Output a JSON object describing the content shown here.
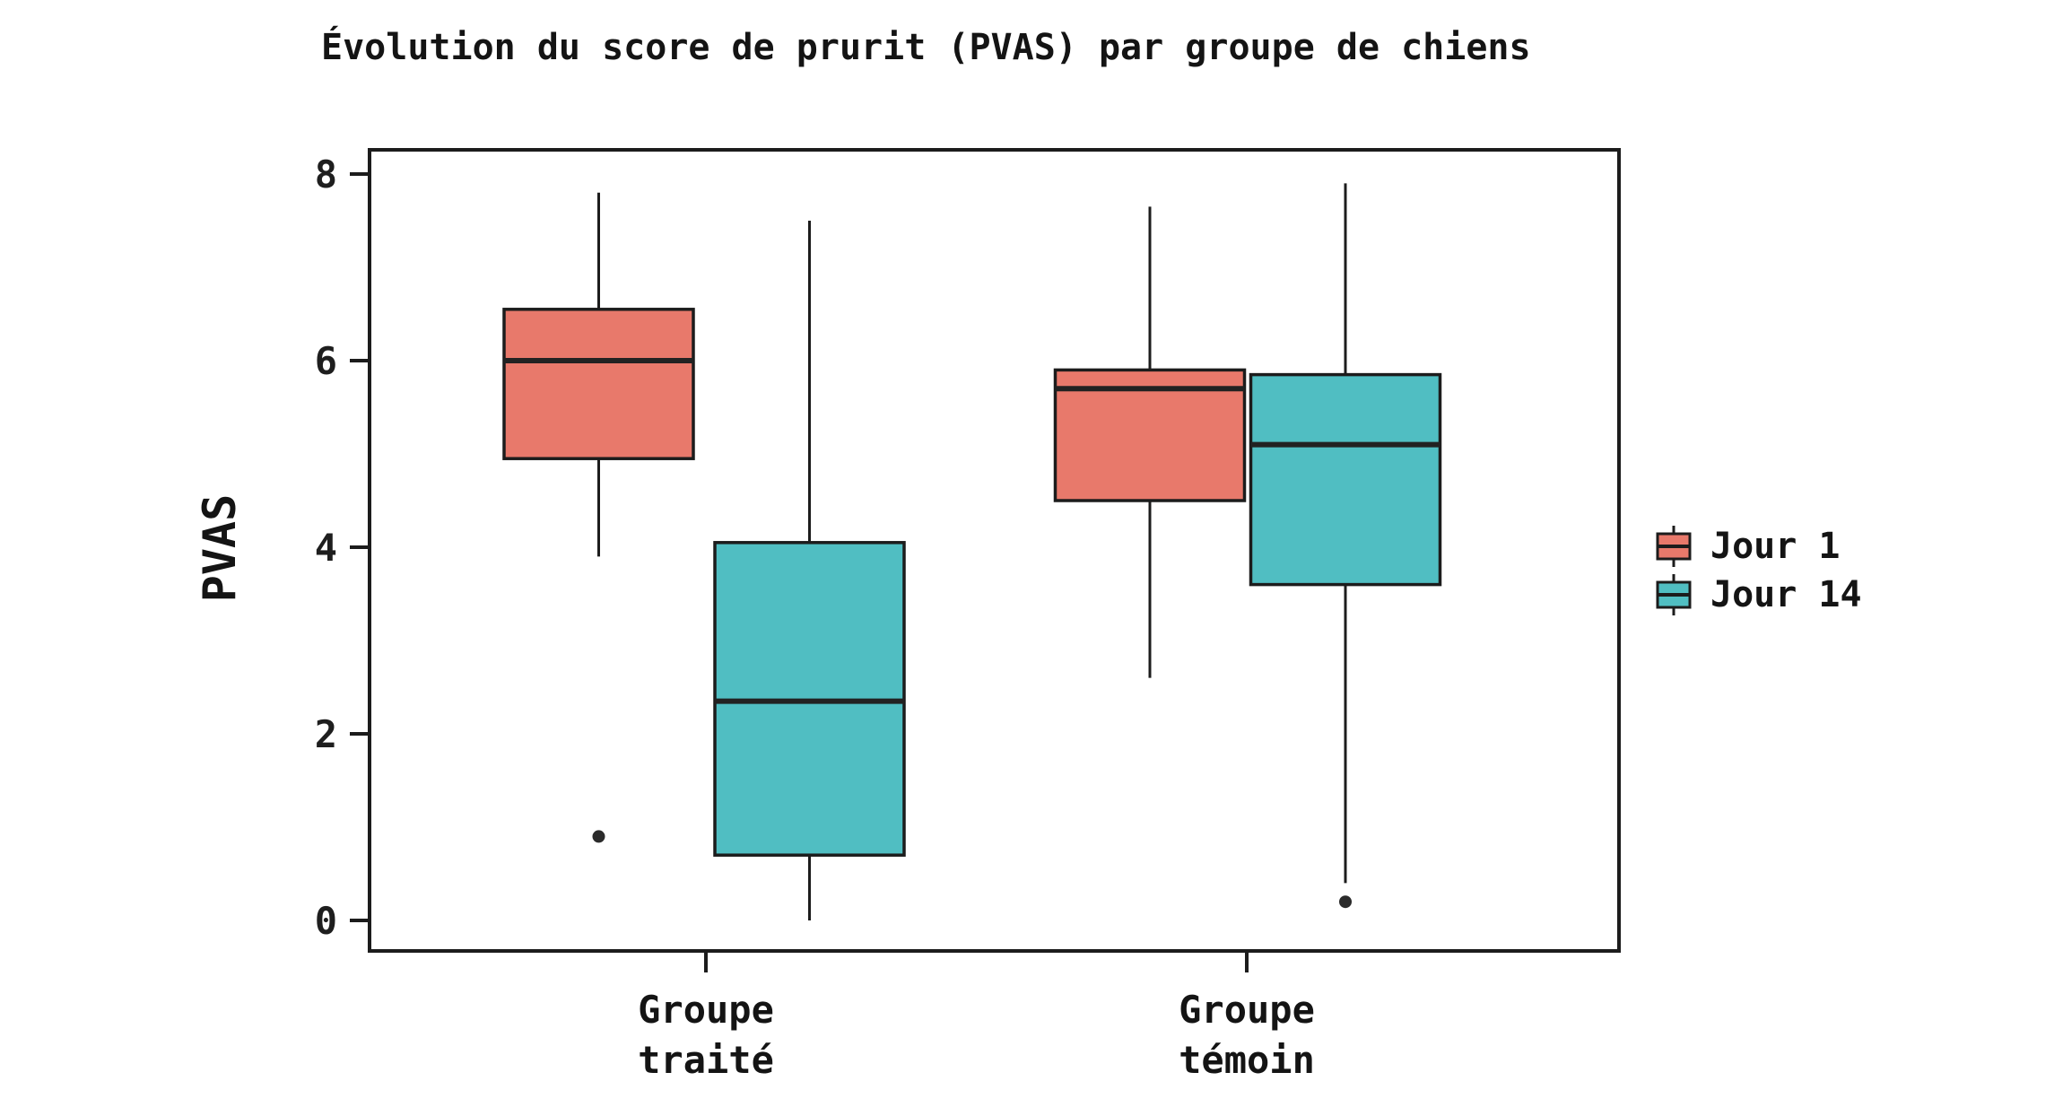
{
  "title": "Évolution du score de prurit (PVAS) par groupe de chiens",
  "y_axis": {
    "label": "PVAS",
    "ticks": [
      0,
      2,
      4,
      6,
      8
    ]
  },
  "x_axis": {
    "groups": [
      {
        "line1": "Groupe",
        "line2": "traité"
      },
      {
        "line1": "Groupe",
        "line2": "témoin"
      }
    ]
  },
  "legend": {
    "position": "right",
    "entries": [
      {
        "label": "Jour 1",
        "color": "#E8796B"
      },
      {
        "label": "Jour 14",
        "color": "#50BEC2"
      }
    ]
  },
  "colors": {
    "stroke": "#1C1C1C",
    "outlier": "#2B2B2B",
    "background": "#FFFFFF"
  },
  "chart_data": {
    "type": "boxplot",
    "title": "Évolution du score de prurit (PVAS) par groupe de chiens",
    "xlabel": "",
    "ylabel": "PVAS",
    "ylim": [
      -0.33,
      8.26
    ],
    "yticks": [
      0,
      2,
      4,
      6,
      8
    ],
    "grid": false,
    "legend_position": "right",
    "categories": [
      "Groupe traité",
      "Groupe témoin"
    ],
    "series": [
      {
        "name": "Jour 1",
        "color": "#E8796B",
        "boxes": [
          {
            "category": "Groupe traité",
            "whisker_low": 3.9,
            "q1": 4.95,
            "median": 6.0,
            "q3": 6.55,
            "whisker_high": 7.8,
            "outliers": [
              0.9
            ]
          },
          {
            "category": "Groupe témoin",
            "whisker_low": 2.6,
            "q1": 4.5,
            "median": 5.7,
            "q3": 5.9,
            "whisker_high": 7.65,
            "outliers": []
          }
        ]
      },
      {
        "name": "Jour 14",
        "color": "#50BEC2",
        "boxes": [
          {
            "category": "Groupe traité",
            "whisker_low": 0.0,
            "q1": 0.7,
            "median": 2.35,
            "q3": 4.05,
            "whisker_high": 7.5,
            "outliers": []
          },
          {
            "category": "Groupe témoin",
            "whisker_low": 0.4,
            "q1": 3.6,
            "median": 5.1,
            "q3": 5.85,
            "whisker_high": 7.9,
            "outliers": [
              0.2
            ]
          }
        ]
      }
    ]
  }
}
